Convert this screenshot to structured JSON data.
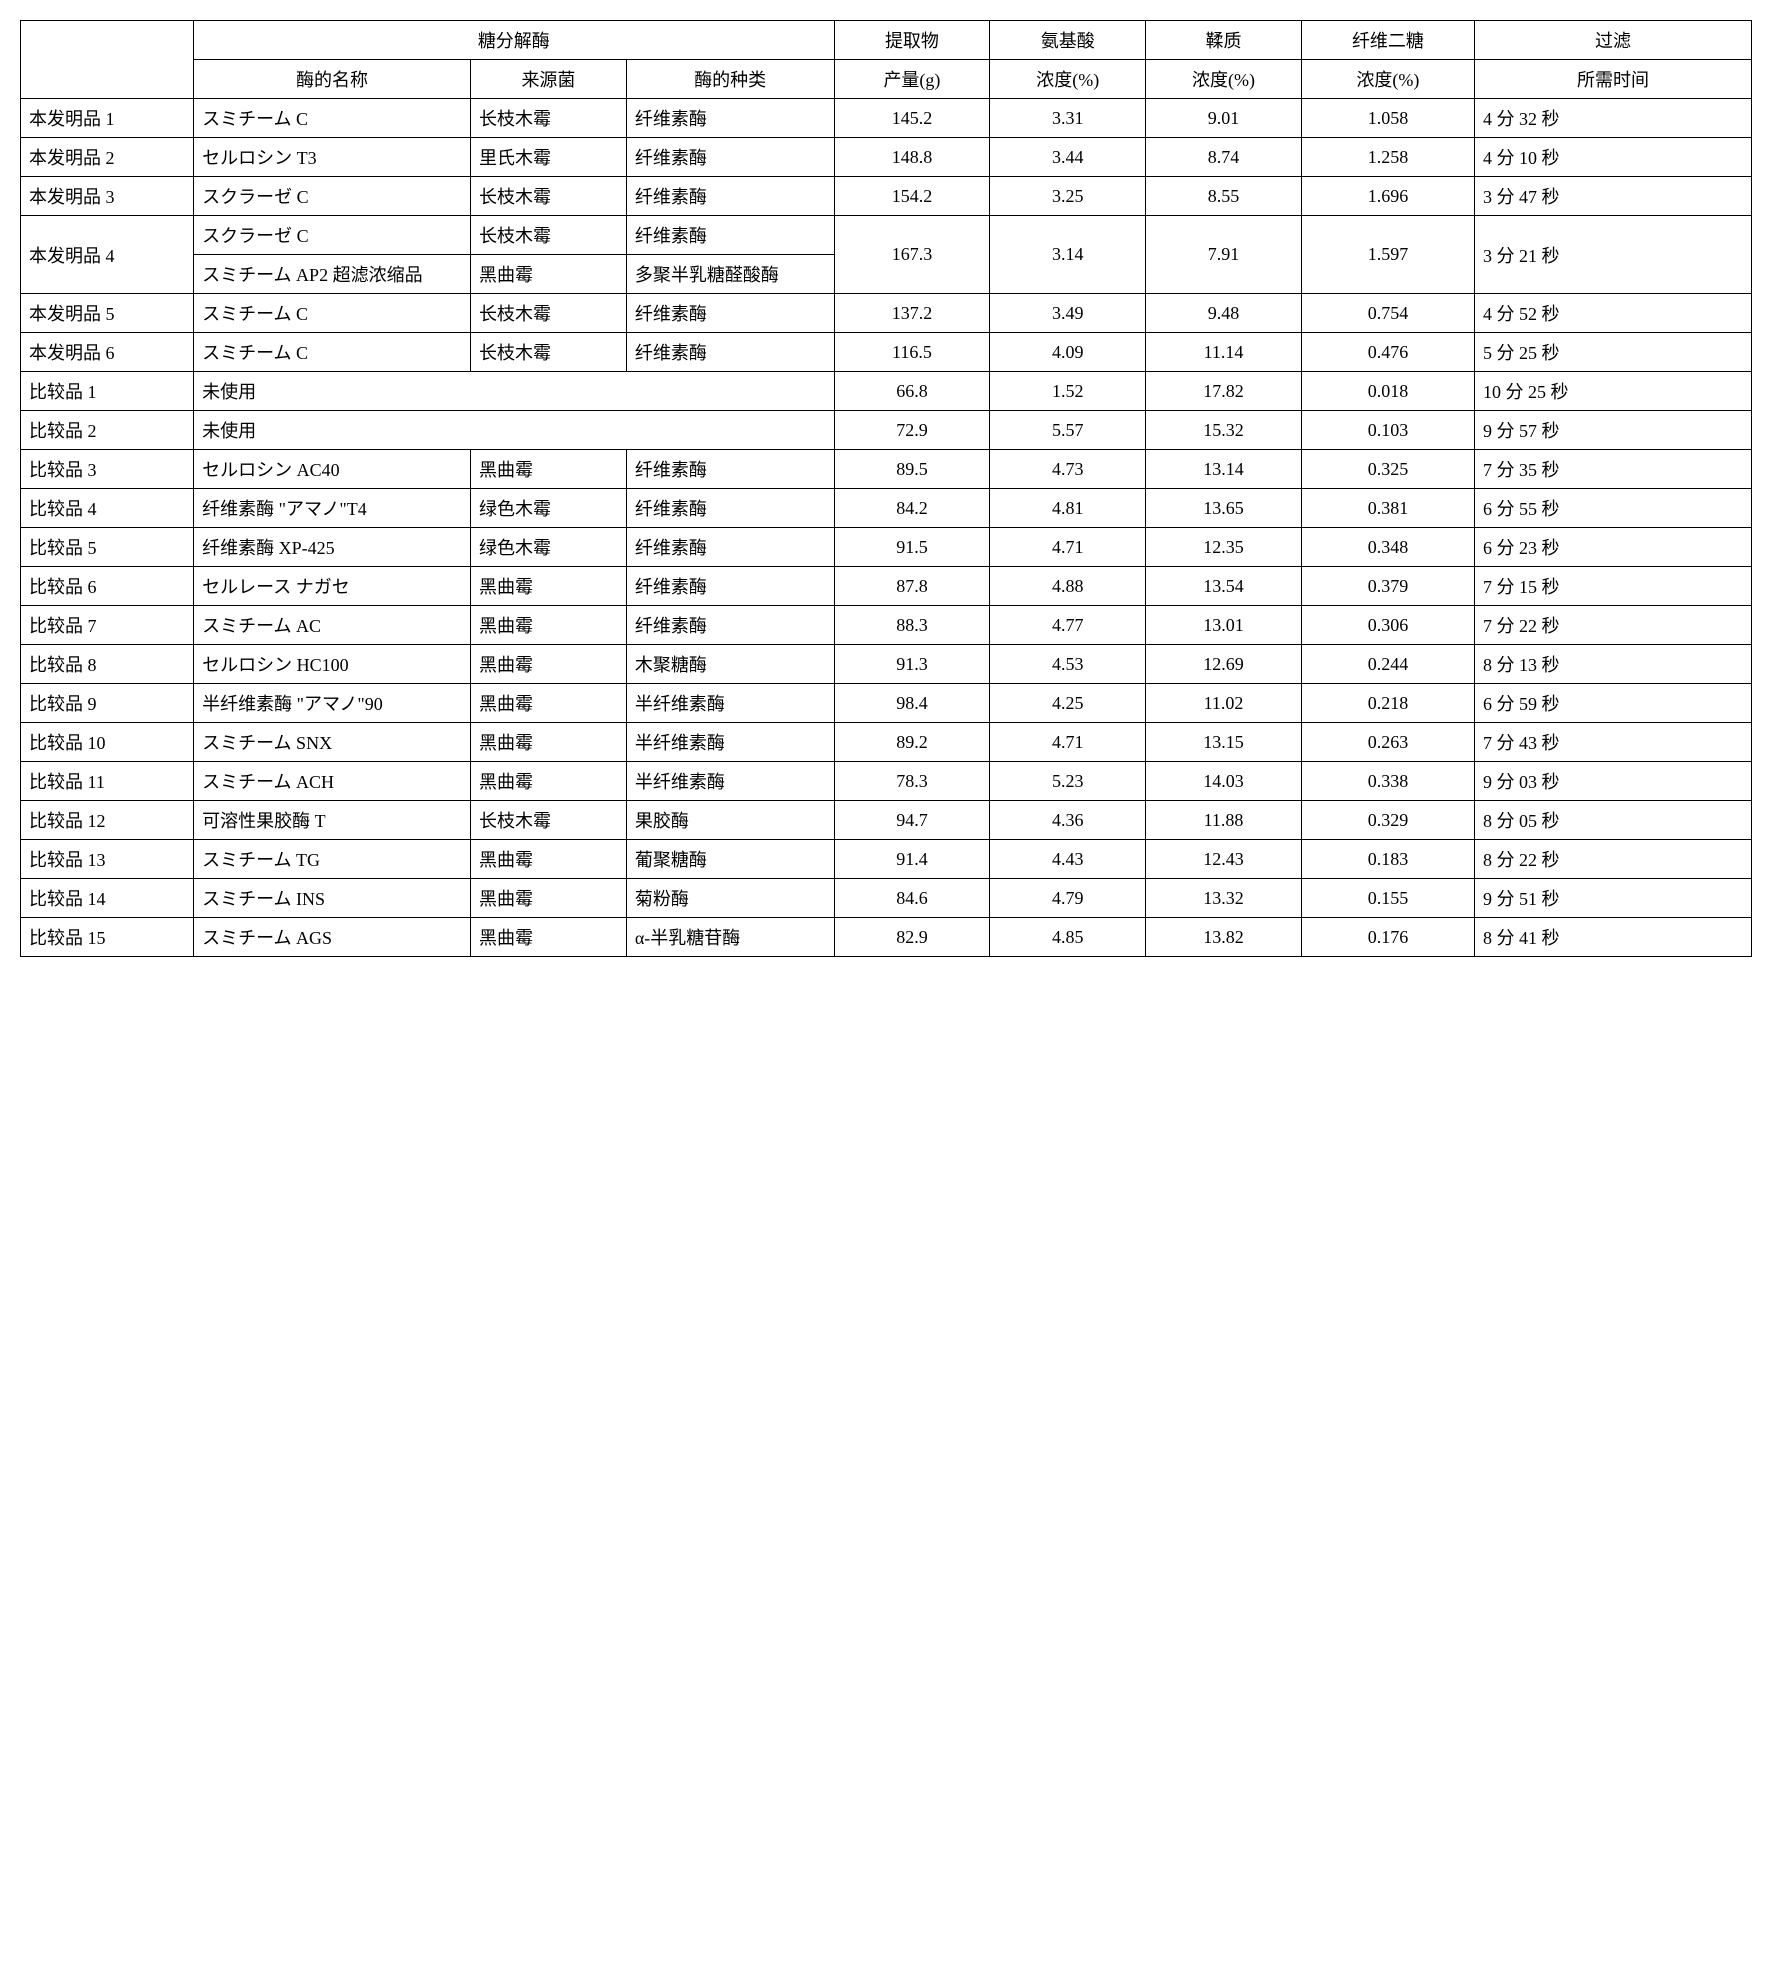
{
  "table": {
    "headers": {
      "enzyme_group": "糖分解酶",
      "enzyme_name": "酶的名称",
      "source": "来源菌",
      "enzyme_type": "酶的种类",
      "extract_yield": "提取物",
      "extract_yield_unit": "产量(g)",
      "amino_acid": "氨基酸",
      "amino_acid_unit": "浓度(%)",
      "tannin": "鞣质",
      "tannin_unit": "浓度(%)",
      "cellobiose": "纤维二糖",
      "cellobiose_unit": "浓度(%)",
      "filter_time": "过滤",
      "filter_time_unit": "所需时间"
    },
    "rows": [
      {
        "label": "本发明品 1",
        "enzymes": [
          {
            "name": "スミチーム C",
            "source": "长枝木霉",
            "type": "纤维素酶"
          }
        ],
        "yield": "145.2",
        "amino": "3.31",
        "tannin": "9.01",
        "cellobiose": "1.058",
        "time": "4 分 32 秒"
      },
      {
        "label": "本发明品 2",
        "enzymes": [
          {
            "name": "セルロシン T3",
            "source": "里氏木霉",
            "type": "纤维素酶"
          }
        ],
        "yield": "148.8",
        "amino": "3.44",
        "tannin": "8.74",
        "cellobiose": "1.258",
        "time": "4 分 10 秒"
      },
      {
        "label": "本发明品 3",
        "enzymes": [
          {
            "name": "スクラーゼ C",
            "source": "长枝木霉",
            "type": "纤维素酶"
          }
        ],
        "yield": "154.2",
        "amino": "3.25",
        "tannin": "8.55",
        "cellobiose": "1.696",
        "time": "3 分 47 秒"
      },
      {
        "label": "本发明品 4",
        "enzymes": [
          {
            "name": "スクラーゼ C",
            "source": "长枝木霉",
            "type": "纤维素酶"
          },
          {
            "name": "スミチーム AP2 超滤浓缩品",
            "source": "黑曲霉",
            "type": "多聚半乳糖醛酸酶"
          }
        ],
        "yield": "167.3",
        "amino": "3.14",
        "tannin": "7.91",
        "cellobiose": "1.597",
        "time": "3 分 21 秒"
      },
      {
        "label": "本发明品 5",
        "enzymes": [
          {
            "name": "スミチーム C",
            "source": "长枝木霉",
            "type": "纤维素酶"
          }
        ],
        "yield": "137.2",
        "amino": "3.49",
        "tannin": "9.48",
        "cellobiose": "0.754",
        "time": "4 分 52 秒"
      },
      {
        "label": "本发明品 6",
        "enzymes": [
          {
            "name": "スミチーム C",
            "source": "长枝木霉",
            "type": "纤维素酶"
          }
        ],
        "yield": "116.5",
        "amino": "4.09",
        "tannin": "11.14",
        "cellobiose": "0.476",
        "time": "5 分 25 秒"
      },
      {
        "label": "比较品 1",
        "enzymes": [
          {
            "name": "未使用",
            "source": "",
            "type": "",
            "span": true
          }
        ],
        "yield": "66.8",
        "amino": "1.52",
        "tannin": "17.82",
        "cellobiose": "0.018",
        "time": "10 分 25 秒"
      },
      {
        "label": "比较品 2",
        "enzymes": [
          {
            "name": "未使用",
            "source": "",
            "type": "",
            "span": true
          }
        ],
        "yield": "72.9",
        "amino": "5.57",
        "tannin": "15.32",
        "cellobiose": "0.103",
        "time": "9 分 57 秒"
      },
      {
        "label": "比较品 3",
        "enzymes": [
          {
            "name": "セルロシン AC40",
            "source": "黑曲霉",
            "type": "纤维素酶"
          }
        ],
        "yield": "89.5",
        "amino": "4.73",
        "tannin": "13.14",
        "cellobiose": "0.325",
        "time": "7 分 35 秒"
      },
      {
        "label": "比较品 4",
        "enzymes": [
          {
            "name": "纤维素酶 \"アマノ\"T4",
            "source": "绿色木霉",
            "type": "纤维素酶"
          }
        ],
        "yield": "84.2",
        "amino": "4.81",
        "tannin": "13.65",
        "cellobiose": "0.381",
        "time": "6 分 55 秒"
      },
      {
        "label": "比较品 5",
        "enzymes": [
          {
            "name": "纤维素酶 XP-425",
            "source": "绿色木霉",
            "type": "纤维素酶"
          }
        ],
        "yield": "91.5",
        "amino": "4.71",
        "tannin": "12.35",
        "cellobiose": "0.348",
        "time": "6 分 23 秒"
      },
      {
        "label": "比较品 6",
        "enzymes": [
          {
            "name": "セルレース ナガセ",
            "source": "黑曲霉",
            "type": "纤维素酶"
          }
        ],
        "yield": "87.8",
        "amino": "4.88",
        "tannin": "13.54",
        "cellobiose": "0.379",
        "time": "7 分 15 秒"
      },
      {
        "label": "比较品 7",
        "enzymes": [
          {
            "name": "スミチーム AC",
            "source": "黑曲霉",
            "type": "纤维素酶"
          }
        ],
        "yield": "88.3",
        "amino": "4.77",
        "tannin": "13.01",
        "cellobiose": "0.306",
        "time": "7 分 22 秒"
      },
      {
        "label": "比较品 8",
        "enzymes": [
          {
            "name": "セルロシン HC100",
            "source": "黑曲霉",
            "type": "木聚糖酶"
          }
        ],
        "yield": "91.3",
        "amino": "4.53",
        "tannin": "12.69",
        "cellobiose": "0.244",
        "time": "8 分 13 秒"
      },
      {
        "label": "比较品 9",
        "enzymes": [
          {
            "name": "半纤维素酶 \"アマノ\"90",
            "source": "黑曲霉",
            "type": "半纤维素酶"
          }
        ],
        "yield": "98.4",
        "amino": "4.25",
        "tannin": "11.02",
        "cellobiose": "0.218",
        "time": "6 分 59 秒"
      },
      {
        "label": "比较品 10",
        "enzymes": [
          {
            "name": "スミチーム SNX",
            "source": "黑曲霉",
            "type": "半纤维素酶"
          }
        ],
        "yield": "89.2",
        "amino": "4.71",
        "tannin": "13.15",
        "cellobiose": "0.263",
        "time": "7 分 43 秒"
      },
      {
        "label": "比较品 11",
        "enzymes": [
          {
            "name": "スミチーム ACH",
            "source": "黑曲霉",
            "type": "半纤维素酶"
          }
        ],
        "yield": "78.3",
        "amino": "5.23",
        "tannin": "14.03",
        "cellobiose": "0.338",
        "time": "9 分 03 秒"
      },
      {
        "label": "比较品 12",
        "enzymes": [
          {
            "name": "可溶性果胶酶 T",
            "source": "长枝木霉",
            "type": "果胶酶"
          }
        ],
        "yield": "94.7",
        "amino": "4.36",
        "tannin": "11.88",
        "cellobiose": "0.329",
        "time": "8 分 05 秒"
      },
      {
        "label": "比较品 13",
        "enzymes": [
          {
            "name": "スミチーム TG",
            "source": "黑曲霉",
            "type": "葡聚糖酶"
          }
        ],
        "yield": "91.4",
        "amino": "4.43",
        "tannin": "12.43",
        "cellobiose": "0.183",
        "time": "8 分 22 秒"
      },
      {
        "label": "比较品 14",
        "enzymes": [
          {
            "name": "スミチーム INS",
            "source": "黑曲霉",
            "type": "菊粉酶"
          }
        ],
        "yield": "84.6",
        "amino": "4.79",
        "tannin": "13.32",
        "cellobiose": "0.155",
        "time": "9 分 51 秒"
      },
      {
        "label": "比较品 15",
        "enzymes": [
          {
            "name": "スミチーム AGS",
            "source": "黑曲霉",
            "type": "α-半乳糖苷酶"
          }
        ],
        "yield": "82.9",
        "amino": "4.85",
        "tannin": "13.82",
        "cellobiose": "0.176",
        "time": "8 分 41 秒"
      }
    ],
    "styling": {
      "border_color": "#000000",
      "background_color": "#ffffff",
      "font_size": 18,
      "font_family": "SimSun, MS Gothic, serif",
      "col_widths_pct": [
        10,
        16,
        9,
        12,
        9,
        9,
        9,
        10,
        16
      ]
    }
  }
}
